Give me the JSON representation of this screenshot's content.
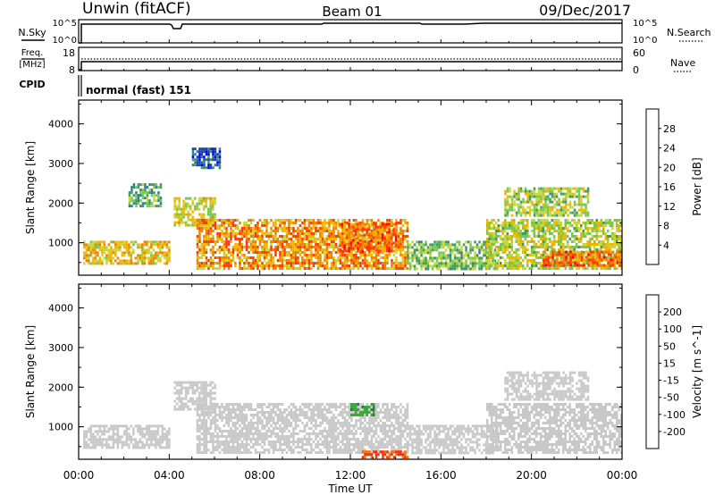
{
  "header": {
    "title": "Unwin (fitACF)",
    "beam": "Beam 01",
    "date": "09/Dec/2017"
  },
  "top_panels": {
    "nsky": {
      "left_label": "N.Sky",
      "left_ticks": [
        "10^5",
        "10^0"
      ],
      "right_ticks": [
        "10^5",
        "10^0"
      ],
      "right_label": "N.Search"
    },
    "freq": {
      "left_label_1": "Freq.",
      "left_label_2": "[MHz]",
      "left_ticks": [
        "18",
        "8"
      ],
      "right_ticks": [
        "60",
        "0"
      ],
      "right_label": "Nave"
    },
    "cpid": {
      "left_label": "CPID",
      "value": "normal (fast) 151"
    }
  },
  "chart_data": [
    {
      "type": "heatmap",
      "title": "",
      "xlabel": "Time UT",
      "ylabel": "Slant Range [km]",
      "xlim": [
        0,
        24
      ],
      "ylim": [
        180,
        4600
      ],
      "x_ticks": [
        "00:00",
        "04:00",
        "08:00",
        "12:00",
        "16:00",
        "20:00",
        "00:00"
      ],
      "y_ticks": [
        "1000",
        "2000",
        "3000",
        "4000"
      ],
      "colorbar": {
        "label": "Power [dB]",
        "range": [
          0,
          32
        ],
        "ticks": [
          "4",
          "8",
          "12",
          "16",
          "20",
          "24",
          "28"
        ],
        "colors": [
          "#0000ff",
          "#1a3fa5",
          "#2e7f8a",
          "#3f9a60",
          "#77c84f",
          "#c8d83a",
          "#f3b400",
          "#f08000",
          "#ff3a00",
          "#ff0000"
        ]
      },
      "regions": [
        {
          "t0": 0.2,
          "t1": 4.0,
          "r0": 450,
          "r1": 1050,
          "value": 20
        },
        {
          "t0": 4.2,
          "t1": 6.0,
          "r0": 1450,
          "r1": 2150,
          "value": 18
        },
        {
          "t0": 5.2,
          "t1": 14.5,
          "r0": 380,
          "r1": 1600,
          "value": 23
        },
        {
          "t0": 11.5,
          "t1": 14.0,
          "r0": 800,
          "r1": 1500,
          "value": 25
        },
        {
          "t0": 14.5,
          "t1": 18.5,
          "r0": 350,
          "r1": 1050,
          "value": 14
        },
        {
          "t0": 18.0,
          "t1": 24.0,
          "r0": 350,
          "r1": 1600,
          "value": 17
        },
        {
          "t0": 20.5,
          "t1": 24.0,
          "r0": 400,
          "r1": 800,
          "value": 25
        },
        {
          "t0": 18.8,
          "t1": 22.5,
          "r0": 1700,
          "r1": 2400,
          "value": 16
        },
        {
          "t0": 2.2,
          "t1": 3.6,
          "r0": 1900,
          "r1": 2500,
          "value": 12
        },
        {
          "t0": 5.0,
          "t1": 6.2,
          "r0": 2900,
          "r1": 3400,
          "value": 6
        }
      ]
    },
    {
      "type": "heatmap",
      "title": "",
      "xlabel": "Time UT",
      "ylabel": "Slant Range [km]",
      "xlim": [
        0,
        24
      ],
      "ylim": [
        180,
        4600
      ],
      "x_ticks": [
        "00:00",
        "04:00",
        "08:00",
        "12:00",
        "16:00",
        "20:00",
        "00:00"
      ],
      "y_ticks": [
        "1000",
        "2000",
        "3000",
        "4000"
      ],
      "colorbar": {
        "label": "Velocity [m s^-1]",
        "ticks": [
          "200",
          "100",
          "50",
          "15",
          "-15",
          "-50",
          "-100",
          "-200"
        ],
        "colors": [
          "#2236c0",
          "#1f7f4a",
          "#3aa83a",
          "#7acc2a",
          "#c8c8c8",
          "#f4a020",
          "#f07000",
          "#ff2800",
          "#ff0000"
        ]
      },
      "regions": [
        {
          "t0": 0.2,
          "t1": 4.0,
          "r0": 450,
          "r1": 1050,
          "value": 0
        },
        {
          "t0": 4.2,
          "t1": 6.0,
          "r0": 1450,
          "r1": 2150,
          "value": 0
        },
        {
          "t0": 5.2,
          "t1": 14.5,
          "r0": 380,
          "r1": 1600,
          "value": 0
        },
        {
          "t0": 12.0,
          "t1": 13.0,
          "r0": 1300,
          "r1": 1600,
          "value": 60
        },
        {
          "t0": 12.5,
          "t1": 14.5,
          "r0": 250,
          "r1": 400,
          "value": -80
        },
        {
          "t0": 14.5,
          "t1": 18.5,
          "r0": 350,
          "r1": 1050,
          "value": 0
        },
        {
          "t0": 18.0,
          "t1": 24.0,
          "r0": 350,
          "r1": 1600,
          "value": 0
        },
        {
          "t0": 18.8,
          "t1": 22.5,
          "r0": 1700,
          "r1": 2400,
          "value": 0
        }
      ]
    }
  ]
}
